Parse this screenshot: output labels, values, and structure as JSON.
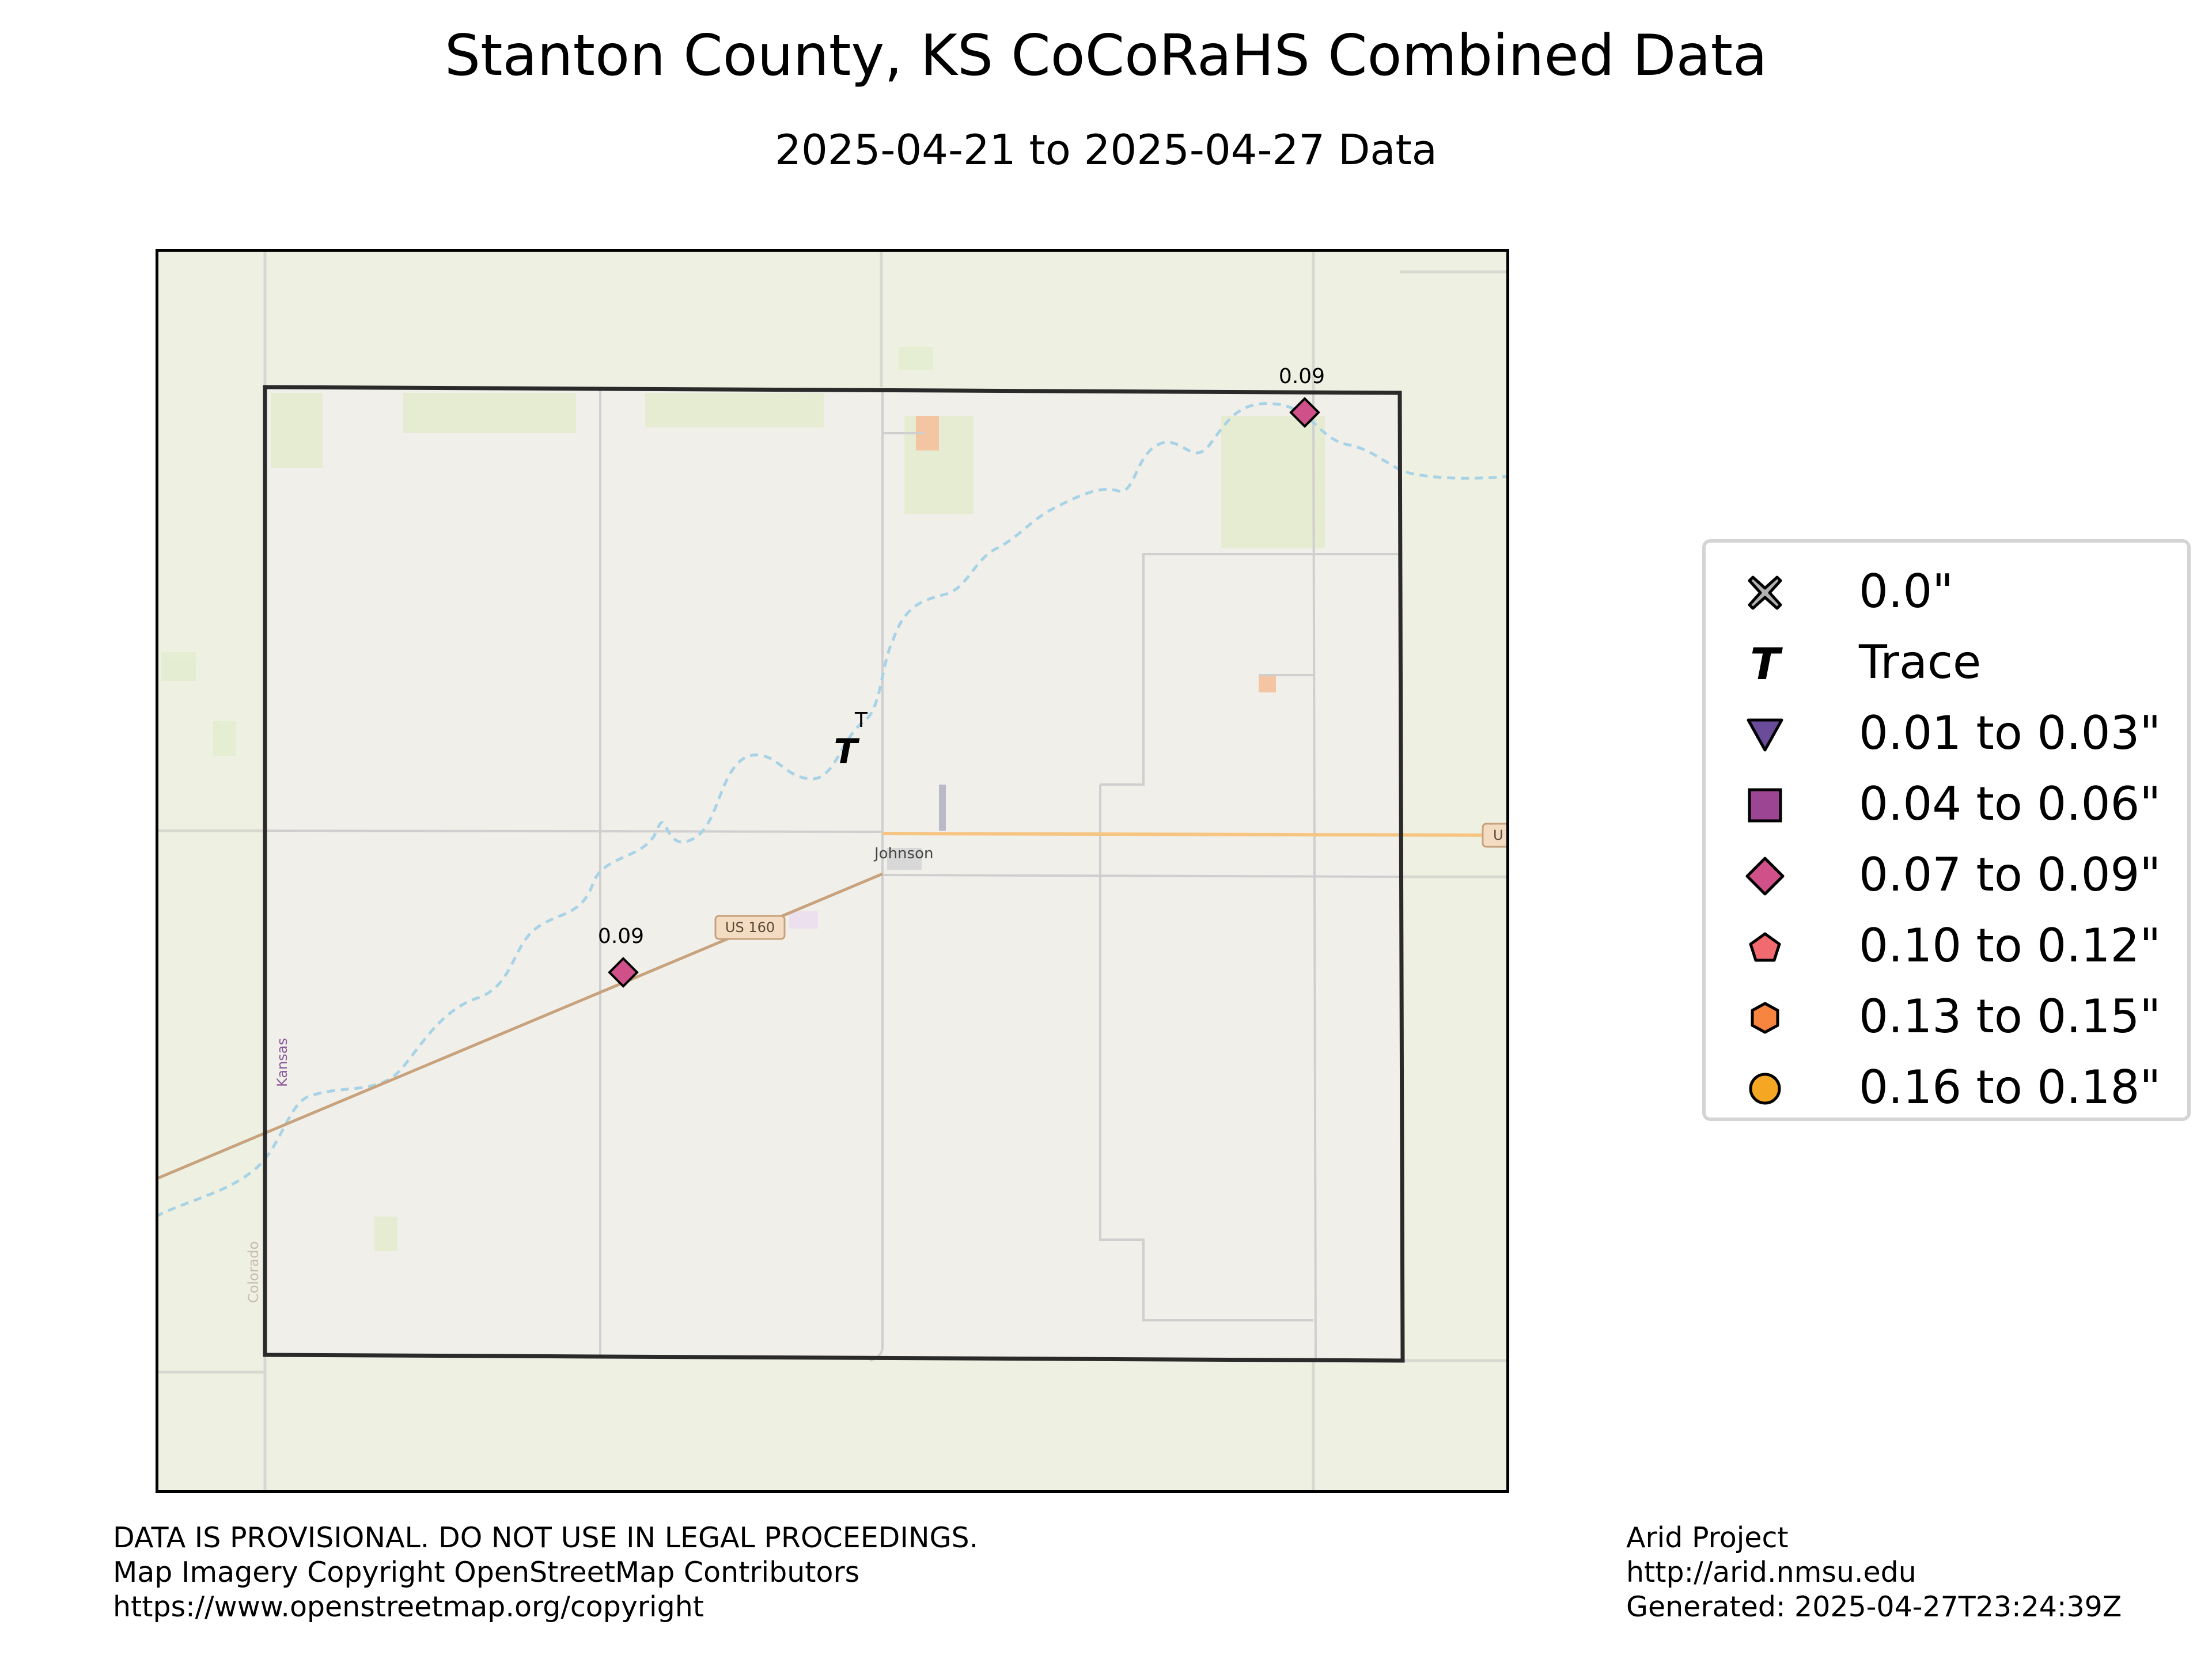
{
  "title": "Stanton County, KS CoCoRaHS Combined Data",
  "subtitle": "2025-04-21 to 2025-04-27 Data",
  "map": {
    "labels": {
      "town": "Johnson",
      "highway": "US 160",
      "highway_edge": "U",
      "state_kansas": "Kansas",
      "state_colorado": "Colorado"
    },
    "stations": [
      {
        "label": "0.09",
        "category": "0.07 to 0.09\"",
        "symbol": "diamond",
        "color": "#d0508a"
      },
      {
        "label": "T",
        "category": "Trace",
        "symbol": "trace-T",
        "color": "#000000"
      },
      {
        "label": "0.09",
        "category": "0.07 to 0.09\"",
        "symbol": "diamond",
        "color": "#d0508a"
      }
    ],
    "colors": {
      "land": "#eef0e2",
      "county_fill": "#f1efea",
      "county_border": "#2a2a2a",
      "river": "#a8d3e6",
      "highway": "#c7a27c",
      "road_us": "#f6c582",
      "road_minor": "#cfcfcf"
    }
  },
  "legend": [
    {
      "label": "0.0\"",
      "symbol": "x-mark",
      "color": "#b0b0b0"
    },
    {
      "label": "Trace",
      "symbol": "trace-T",
      "color": "#000000"
    },
    {
      "label": "0.01 to 0.03\"",
      "symbol": "triangle-down",
      "color": "#6b4c9a"
    },
    {
      "label": "0.04 to 0.06\"",
      "symbol": "square",
      "color": "#9c4593"
    },
    {
      "label": "0.07 to 0.09\"",
      "symbol": "diamond",
      "color": "#d0508a"
    },
    {
      "label": "0.10 to 0.12\"",
      "symbol": "pentagon",
      "color": "#f16a6f"
    },
    {
      "label": "0.13 to 0.15\"",
      "symbol": "hexagon",
      "color": "#f8853f"
    },
    {
      "label": "0.16 to 0.18\"",
      "symbol": "circle",
      "color": "#f5a623"
    }
  ],
  "footer_left": [
    "DATA IS PROVISIONAL. DO NOT USE IN LEGAL PROCEEDINGS.",
    "Map Imagery Copyright OpenStreetMap Contributors",
    "https://www.openstreetmap.org/copyright"
  ],
  "footer_right": [
    "Arid Project",
    "http://arid.nmsu.edu",
    "Generated: 2025-04-27T23:24:39Z"
  ]
}
